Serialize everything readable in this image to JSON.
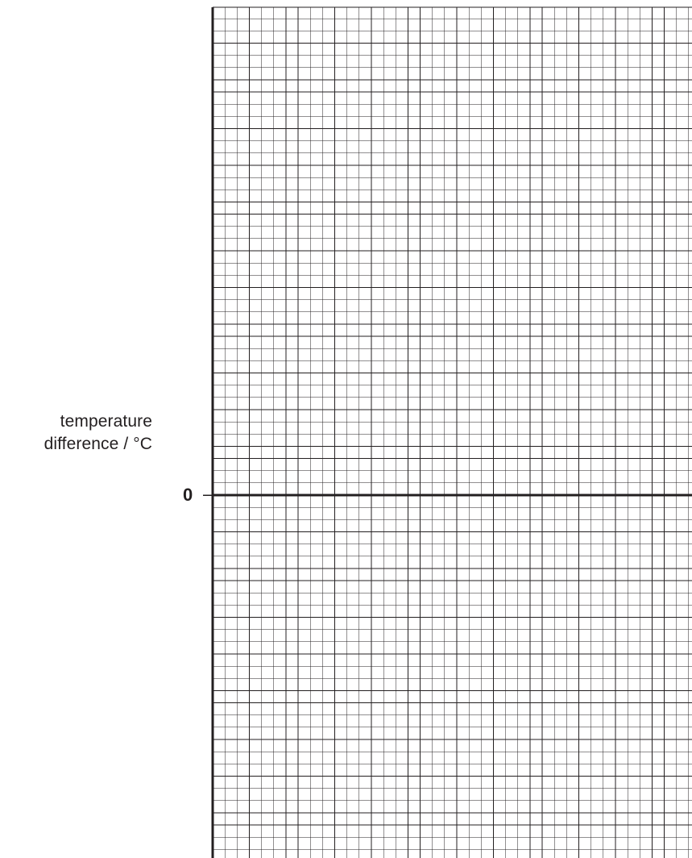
{
  "chart_data": {
    "type": "line",
    "title": "",
    "xlabel": "",
    "ylabel_lines": [
      "temperature",
      "difference / °C"
    ],
    "y_tick_labels": [
      "0"
    ],
    "series": [],
    "grid": true
  },
  "colors": {
    "grid_major": "#231f20",
    "grid_minor": "#231f20",
    "axis": "#231f20",
    "background": "#ffffff"
  }
}
